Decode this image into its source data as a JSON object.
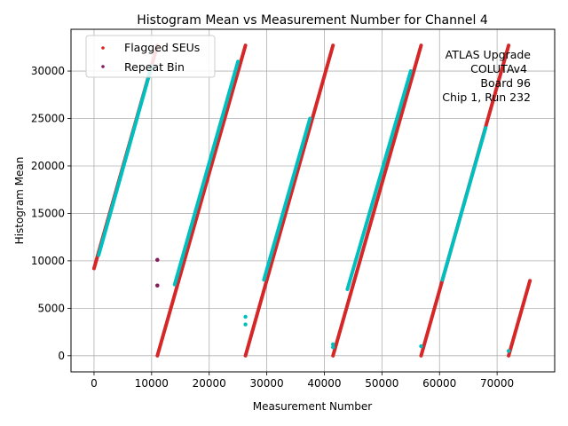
{
  "chart_data": {
    "type": "scatter",
    "title": "Histogram Mean vs Measurement Number for Channel 4",
    "xlabel": "Measurement Number",
    "ylabel": "Histogram Mean",
    "xlim": [
      -4000,
      80000
    ],
    "ylim": [
      -1700,
      34400
    ],
    "x_ticks": [
      0,
      10000,
      20000,
      30000,
      40000,
      50000,
      60000,
      70000
    ],
    "x_tick_labels": [
      "0",
      "10000",
      "20000",
      "30000",
      "40000",
      "50000",
      "60000",
      "70000"
    ],
    "y_ticks": [
      0,
      5000,
      10000,
      15000,
      20000,
      25000,
      30000
    ],
    "y_tick_labels": [
      "0",
      "5000",
      "10000",
      "15000",
      "20000",
      "25000",
      "30000"
    ],
    "grid": true,
    "legend_position": "top-left",
    "annotation_lines": [
      "ATLAS Upgrade",
      "COLUTAv4",
      "Board 96",
      "Chip 1, Run 232"
    ],
    "colors": {
      "main_trace": "#00bfbf",
      "flagged": "#d62728",
      "repeat": "#7f1f5f"
    },
    "series": [
      {
        "name": "Flagged SEUs",
        "color": "#d62728",
        "segments": [
          {
            "x": [
              0,
              11000
            ],
            "y": [
              9200,
              32700
            ]
          },
          {
            "x": [
              11000,
              26300
            ],
            "y": [
              0,
              32700
            ]
          },
          {
            "x": [
              26300,
              41500
            ],
            "y": [
              0,
              32700
            ]
          },
          {
            "x": [
              41500,
              56800
            ],
            "y": [
              0,
              32700
            ]
          },
          {
            "x": [
              56800,
              72000
            ],
            "y": [
              0,
              32700
            ]
          },
          {
            "x": [
              72000,
              75700
            ],
            "y": [
              0,
              7900
            ]
          }
        ],
        "isolated_points": [
          {
            "x": 11000,
            "y": 10100
          },
          {
            "x": 11000,
            "y": 7400
          }
        ]
      },
      {
        "name": "Repeat Bin",
        "color": "#7f1f5f",
        "points": [
          {
            "x": 11000,
            "y": 10100
          },
          {
            "x": 11000,
            "y": 7400
          }
        ]
      },
      {
        "name": "",
        "color": "#00bfbf",
        "segments": [
          {
            "x": [
              800,
              10000
            ],
            "y": [
              10600,
              30500
            ]
          },
          {
            "x": [
              14000,
              25000
            ],
            "y": [
              7500,
              31000
            ]
          },
          {
            "x": [
              29500,
              37500
            ],
            "y": [
              8000,
              25000
            ]
          },
          {
            "x": [
              44000,
              55000
            ],
            "y": [
              7000,
              30000
            ]
          },
          {
            "x": [
              60500,
              68000
            ],
            "y": [
              8000,
              24000
            ]
          }
        ],
        "points": [
          {
            "x": 26300,
            "y": 4100
          },
          {
            "x": 26300,
            "y": 3300
          },
          {
            "x": 41500,
            "y": 1200
          },
          {
            "x": 41500,
            "y": 900
          },
          {
            "x": 56800,
            "y": 1000
          },
          {
            "x": 72000,
            "y": 500
          }
        ]
      }
    ]
  }
}
